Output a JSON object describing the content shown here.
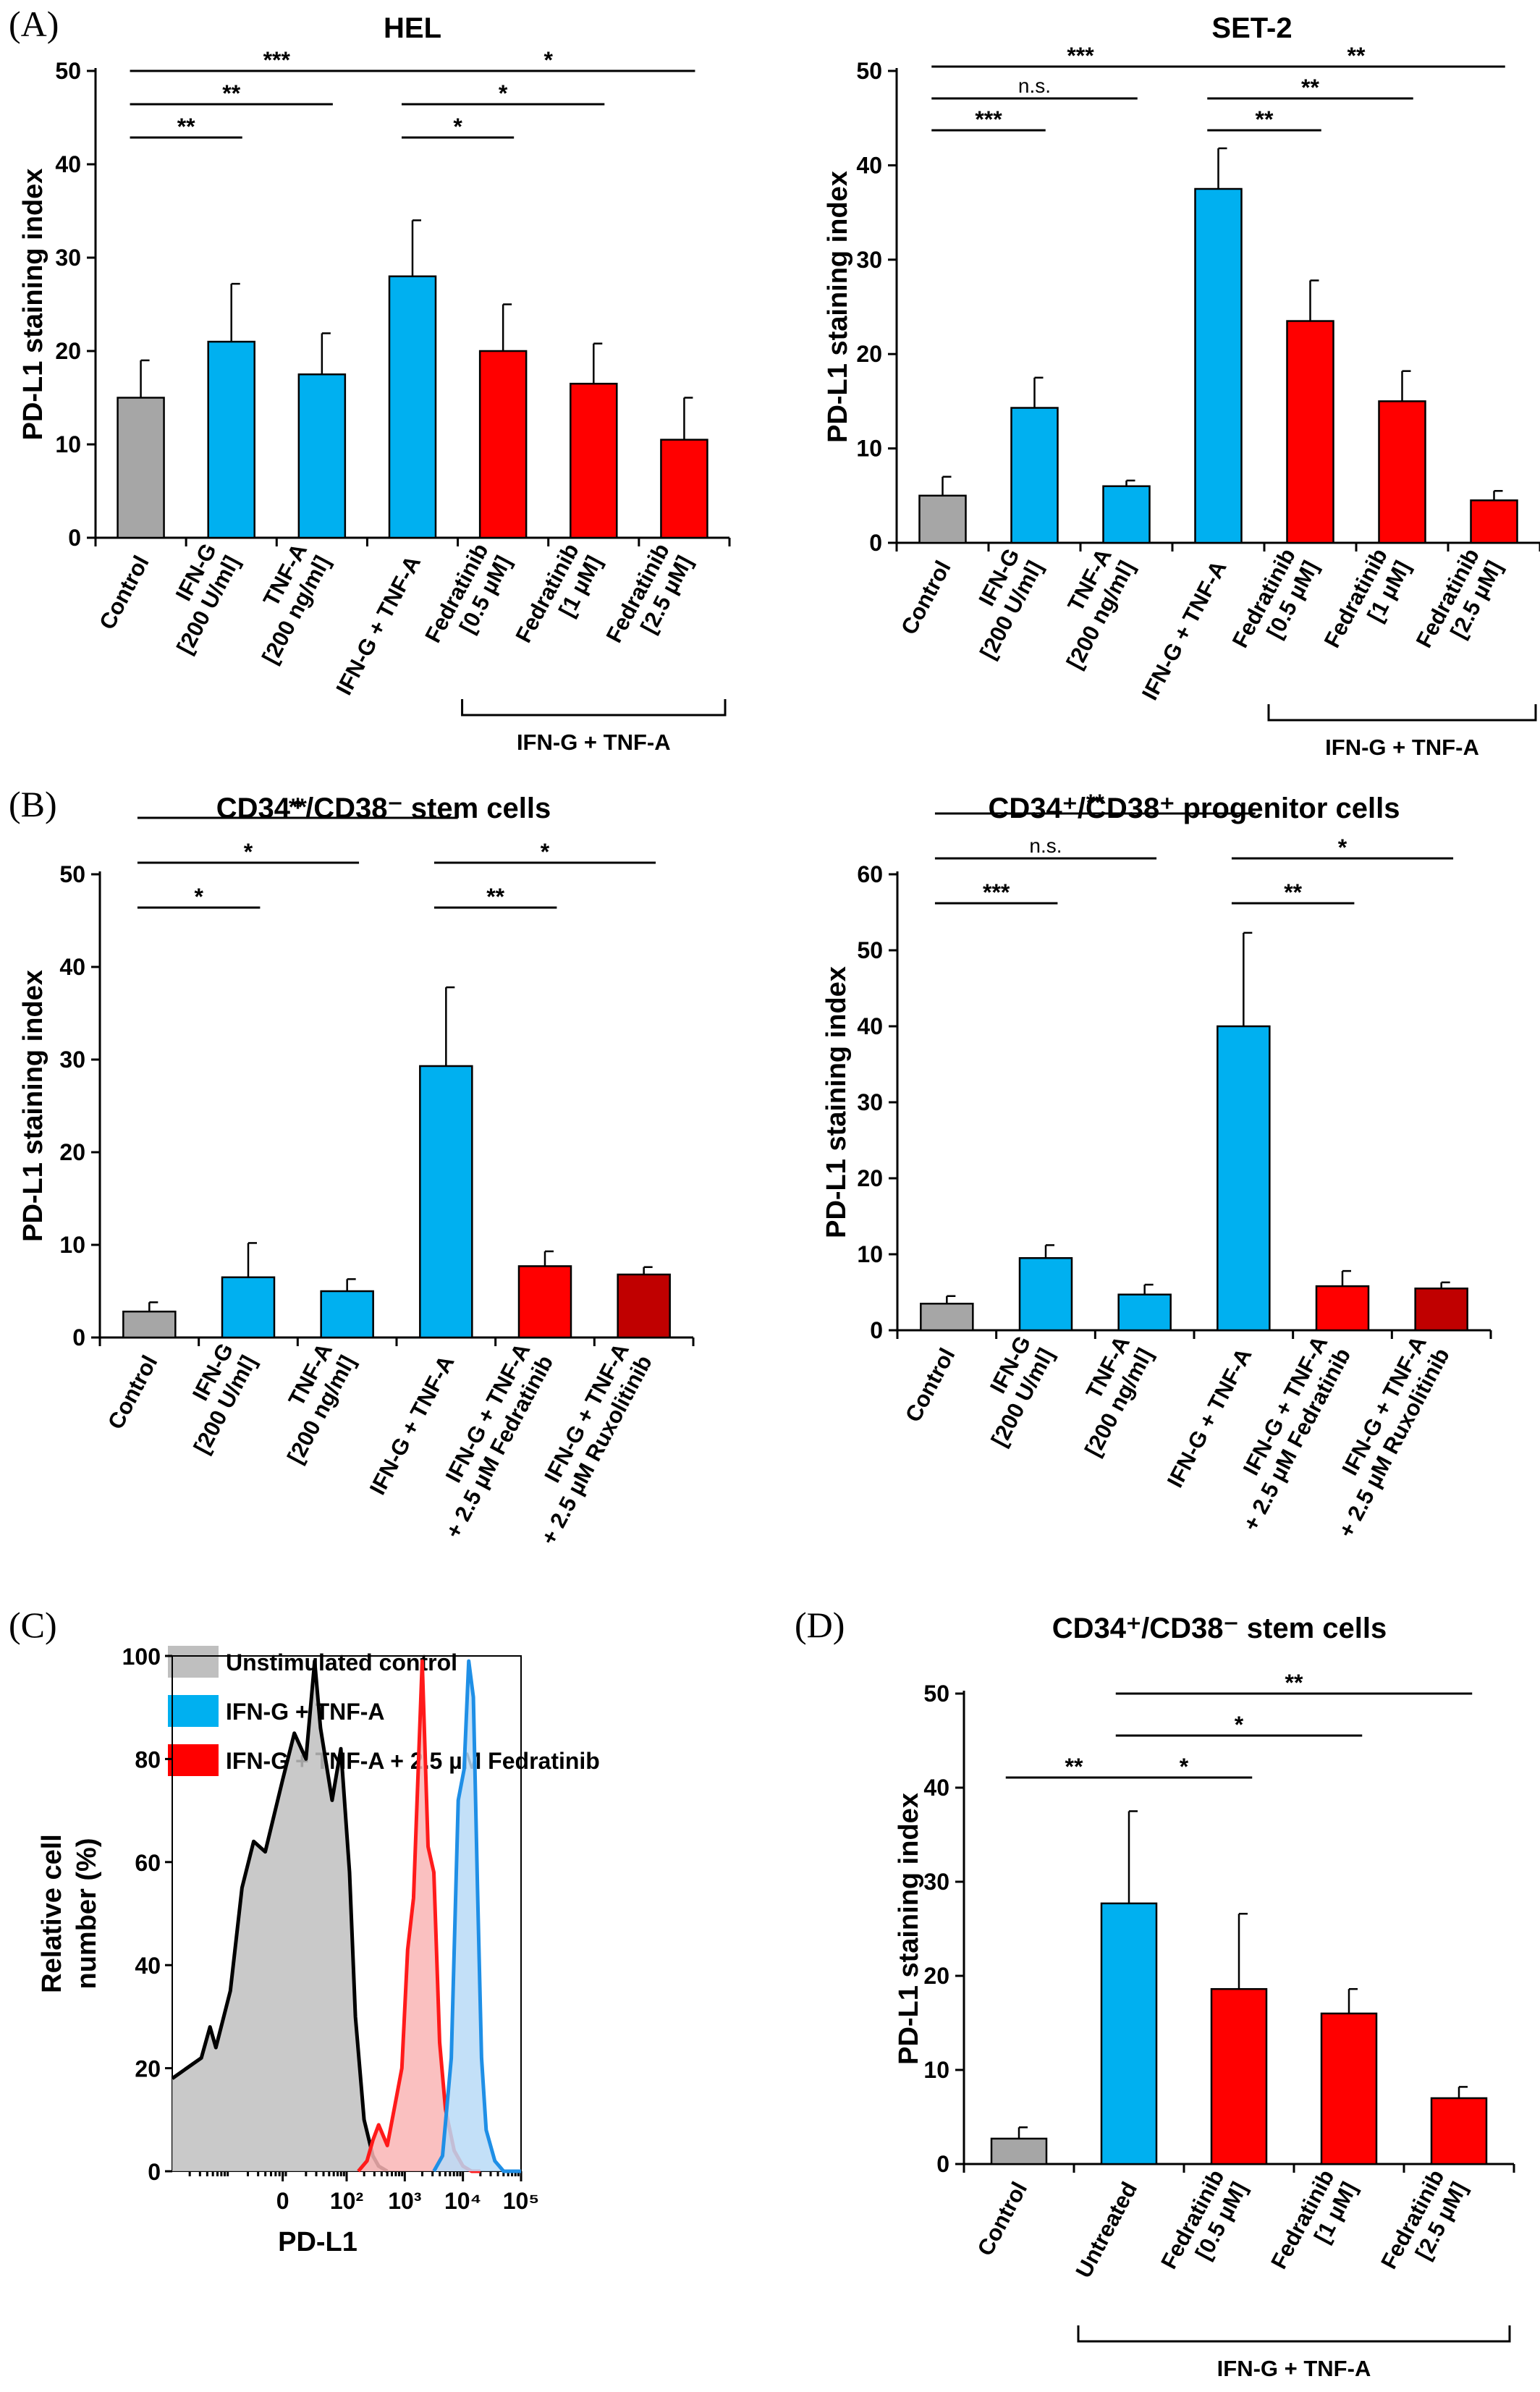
{
  "colors": {
    "gray": "#a6a6a6",
    "blue": "#00b0f0",
    "red": "#ff0000",
    "darkred": "#c00000",
    "hist_gray": "#bfbfbf",
    "hist_blue": "#b8daf7",
    "hist_red": "#f9b5b5",
    "line_gray": "#000000",
    "line_blue": "#1f8fe6",
    "line_red": "#ff1a1a"
  },
  "chart_data": [
    {
      "id": "A1",
      "panel_label": "(A)",
      "type": "bar",
      "title": "HEL",
      "ylabel": "PD-L1 staining index",
      "ylim": [
        0,
        50
      ],
      "yticks": [
        0,
        10,
        20,
        30,
        40,
        50
      ],
      "categories": [
        [
          "Control"
        ],
        [
          "IFN-G",
          "[200 U/ml]"
        ],
        [
          "TNF-A",
          "[200 ng/ml]"
        ],
        [
          "IFN-G + TNF-A"
        ],
        [
          "Fedratinib",
          "[0.5 µM]"
        ],
        [
          "Fedratinib",
          "[1 µM]"
        ],
        [
          "Fedratinib",
          "[2.5 µM]"
        ]
      ],
      "values": [
        15,
        21,
        17.5,
        28,
        20,
        16.5,
        10.5
      ],
      "errors": [
        4,
        6.2,
        4.4,
        6,
        5,
        4.3,
        4.5
      ],
      "colors": [
        "gray",
        "blue",
        "blue",
        "blue",
        "red",
        "red",
        "red"
      ],
      "group_label": "IFN-G + TNF-A",
      "group_range": [
        4,
        6
      ],
      "significance": [
        {
          "from": 0,
          "to": 1,
          "label": "**"
        },
        {
          "from": 0,
          "to": 2,
          "label": "**"
        },
        {
          "from": 0,
          "to": 3,
          "label": "***"
        },
        {
          "from": 3,
          "to": 4,
          "label": "*"
        },
        {
          "from": 3,
          "to": 5,
          "label": "*"
        },
        {
          "from": 3,
          "to": 6,
          "label": "*"
        }
      ]
    },
    {
      "id": "A2",
      "panel_label": "",
      "type": "bar",
      "title": "SET-2",
      "ylabel": "PD-L1 staining index",
      "ylim": [
        0,
        50
      ],
      "yticks": [
        0,
        10,
        20,
        30,
        40,
        50
      ],
      "categories": [
        [
          "Control"
        ],
        [
          "IFN-G",
          "[200 U/ml]"
        ],
        [
          "TNF-A",
          "[200 ng/ml]"
        ],
        [
          "IFN-G + TNF-A"
        ],
        [
          "Fedratinib",
          "[0.5 µM]"
        ],
        [
          "Fedratinib",
          "[1 µM]"
        ],
        [
          "Fedratinib",
          "[2.5 µM]"
        ]
      ],
      "values": [
        5,
        14.3,
        6,
        37.5,
        23.5,
        15,
        4.5
      ],
      "errors": [
        2,
        3.2,
        0.6,
        4.3,
        4.3,
        3.2,
        1
      ],
      "colors": [
        "gray",
        "blue",
        "blue",
        "blue",
        "red",
        "red",
        "red"
      ],
      "group_label": "IFN-G + TNF-A",
      "group_range": [
        4,
        6
      ],
      "significance": [
        {
          "from": 0,
          "to": 1,
          "label": "***"
        },
        {
          "from": 0,
          "to": 2,
          "label": "n.s."
        },
        {
          "from": 0,
          "to": 3,
          "label": "***"
        },
        {
          "from": 3,
          "to": 4,
          "label": "**"
        },
        {
          "from": 3,
          "to": 5,
          "label": "**"
        },
        {
          "from": 3,
          "to": 6,
          "label": "**"
        }
      ]
    },
    {
      "id": "B1",
      "panel_label": "(B)",
      "type": "bar",
      "title": "CD34⁺/CD38⁻ stem cells",
      "ylabel": "PD-L1 staining index",
      "ylim": [
        0,
        50
      ],
      "yticks": [
        0,
        10,
        20,
        30,
        40,
        50
      ],
      "categories": [
        [
          "Control"
        ],
        [
          "IFN-G",
          "[200 U/ml]"
        ],
        [
          "TNF-A",
          "[200 ng/ml]"
        ],
        [
          "IFN-G + TNF-A"
        ],
        [
          "IFN-G + TNF-A",
          "+ 2.5 µM Fedratinib"
        ],
        [
          "IFN-G + TNF-A",
          "+ 2.5 µM Ruxolitinib"
        ]
      ],
      "values": [
        2.8,
        6.5,
        5,
        29.3,
        7.7,
        6.8
      ],
      "errors": [
        1,
        3.7,
        1.3,
        8.5,
        1.6,
        0.8
      ],
      "colors": [
        "gray",
        "blue",
        "blue",
        "blue",
        "red",
        "darkred"
      ],
      "group_label": "",
      "group_range": null,
      "significance": [
        {
          "from": 0,
          "to": 1,
          "label": "*"
        },
        {
          "from": 0,
          "to": 2,
          "label": "*"
        },
        {
          "from": 0,
          "to": 3,
          "label": "**"
        },
        {
          "from": 3,
          "to": 4,
          "label": "**"
        },
        {
          "from": 3,
          "to": 5,
          "label": "*"
        }
      ]
    },
    {
      "id": "B2",
      "panel_label": "",
      "type": "bar",
      "title": "CD34⁺/CD38⁺ progenitor cells",
      "ylabel": "PD-L1 staining index",
      "ylim": [
        0,
        60
      ],
      "yticks": [
        0,
        10,
        20,
        30,
        40,
        50,
        60
      ],
      "categories": [
        [
          "Control"
        ],
        [
          "IFN-G",
          "[200 U/ml]"
        ],
        [
          "TNF-A",
          "[200 ng/ml]"
        ],
        [
          "IFN-G + TNF-A"
        ],
        [
          "IFN-G + TNF-A",
          "+ 2.5 µM Fedratinib"
        ],
        [
          "IFN-G + TNF-A",
          "+ 2.5 µM Ruxolitinib"
        ]
      ],
      "values": [
        3.5,
        9.5,
        4.7,
        40,
        5.8,
        5.5
      ],
      "errors": [
        1,
        1.7,
        1.3,
        12.3,
        2,
        0.8
      ],
      "colors": [
        "gray",
        "blue",
        "blue",
        "blue",
        "red",
        "darkred"
      ],
      "group_label": "",
      "group_range": null,
      "significance": [
        {
          "from": 0,
          "to": 1,
          "label": "***"
        },
        {
          "from": 0,
          "to": 2,
          "label": "n.s."
        },
        {
          "from": 0,
          "to": 3,
          "label": "**"
        },
        {
          "from": 3,
          "to": 4,
          "label": "**"
        },
        {
          "from": 3,
          "to": 5,
          "label": "*"
        }
      ]
    },
    {
      "id": "C",
      "panel_label": "(C)",
      "type": "area",
      "title": "",
      "xlabel": "PD-L1",
      "ylabel": [
        "Relative cell",
        "number (%)"
      ],
      "ylim": [
        0,
        100
      ],
      "yticks": [
        0,
        20,
        40,
        60,
        80,
        100
      ],
      "xscale": "biexponential",
      "xticks": [
        "0",
        "10²",
        "10³",
        "10⁴",
        "10⁵"
      ],
      "legend": [
        {
          "name": "Unstimulated control",
          "color": "hist_gray"
        },
        {
          "name": "IFN-G + TNF-A",
          "color": "line_blue"
        },
        {
          "name": "IFN-G + TNF-A + 2.5 µM Fedratinib",
          "color": "line_red"
        }
      ],
      "series": [
        {
          "name": "Unstimulated control",
          "x": [
            -1.0,
            -0.75,
            -0.5,
            -0.35,
            -0.25,
            0.0,
            0.2,
            0.4,
            0.6,
            0.9,
            1.1,
            1.3,
            1.45,
            1.55,
            1.75,
            1.9,
            2.05,
            2.15,
            2.3,
            2.45,
            2.55,
            2.7
          ],
          "y": [
            18,
            20,
            22,
            28,
            24,
            35,
            55,
            64,
            62,
            76,
            85,
            80,
            99,
            86,
            72,
            82,
            58,
            30,
            10,
            3,
            1,
            0
          ]
        },
        {
          "name": "IFN-G + TNF-A + 2.5 µM Fedratinib",
          "x": [
            2.2,
            2.35,
            2.45,
            2.55,
            2.7,
            2.85,
            2.95,
            3.05,
            3.15,
            3.3,
            3.4,
            3.5,
            3.6,
            3.7,
            3.85,
            4.0,
            4.15,
            4.3
          ],
          "y": [
            0,
            2,
            6,
            9,
            5,
            14,
            20,
            43,
            53,
            99,
            63,
            58,
            25,
            12,
            4,
            1,
            0,
            0
          ]
        },
        {
          "name": "IFN-G + TNF-A",
          "x": [
            3.5,
            3.65,
            3.8,
            3.92,
            4.02,
            4.1,
            4.18,
            4.25,
            4.32,
            4.4,
            4.55,
            4.7,
            4.85,
            5.0
          ],
          "y": [
            0,
            3,
            22,
            72,
            78,
            99,
            92,
            55,
            22,
            8,
            2,
            0,
            0,
            0
          ]
        }
      ]
    },
    {
      "id": "D",
      "panel_label": "(D)",
      "type": "bar",
      "title": "CD34⁺/CD38⁻ stem cells",
      "ylabel": "PD-L1 staining index",
      "ylim": [
        0,
        50
      ],
      "yticks": [
        0,
        10,
        20,
        30,
        40,
        50
      ],
      "categories": [
        [
          "Control"
        ],
        [
          "Untreated"
        ],
        [
          "Fedratinib",
          "[0.5 µM]"
        ],
        [
          "Fedratinib",
          "[1 µM]"
        ],
        [
          "Fedratinib",
          "[2.5 µM]"
        ]
      ],
      "values": [
        2.7,
        27.7,
        18.6,
        16,
        7
      ],
      "errors": [
        1.2,
        9.8,
        8,
        2.6,
        1.2
      ],
      "colors": [
        "gray",
        "blue",
        "red",
        "red",
        "red"
      ],
      "group_label": "IFN-G + TNF-A",
      "group_range": [
        1,
        4
      ],
      "significance": [
        {
          "from": 0,
          "to": 1,
          "label": "**"
        },
        {
          "from": 1,
          "to": 2,
          "label": "*"
        },
        {
          "from": 1,
          "to": 3,
          "label": "*"
        },
        {
          "from": 1,
          "to": 4,
          "label": "**"
        }
      ]
    }
  ]
}
